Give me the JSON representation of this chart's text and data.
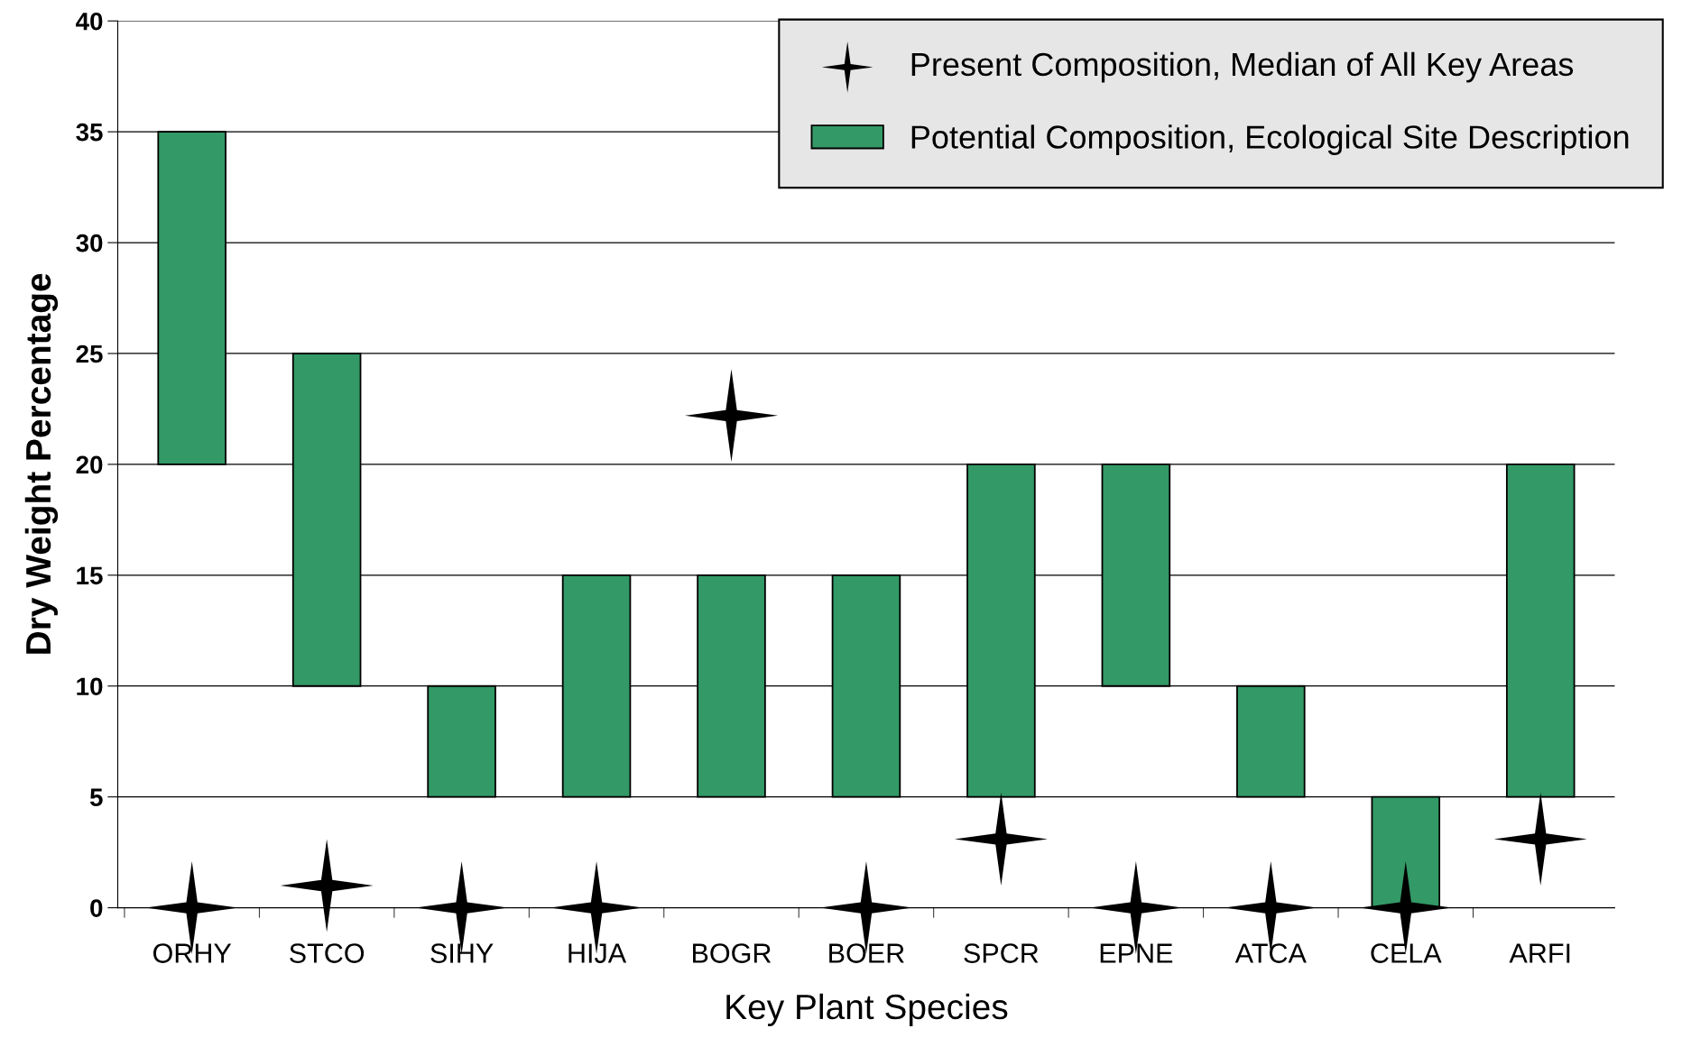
{
  "chart_data": {
    "type": "bar",
    "xlabel": "Key Plant Species",
    "ylabel": "Dry Weight Percentage",
    "categories": [
      "ORHY",
      "STCO",
      "SIHY",
      "HIJA",
      "BOGR",
      "BOER",
      "SPCR",
      "EPNE",
      "ATCA",
      "CELA",
      "ARFI"
    ],
    "series": [
      {
        "name": "Present Composition, Median of All Key Areas",
        "type": "scatter",
        "marker": "star",
        "color": "#000000",
        "values": [
          0,
          1,
          0,
          0,
          22.2,
          0,
          3.1,
          0,
          0,
          0,
          3.1
        ]
      },
      {
        "name": "Potential Composition, Ecological Site Description",
        "color": "#339966",
        "base": [
          20,
          10,
          5,
          5,
          5,
          5,
          5,
          10,
          5,
          0,
          5
        ],
        "values": [
          15,
          15,
          5,
          10,
          10,
          10,
          15,
          10,
          5,
          5,
          15
        ]
      }
    ],
    "ylim": [
      0,
      40
    ],
    "yticks": [
      0,
      5,
      10,
      15,
      20,
      25,
      30,
      35,
      40
    ],
    "grid": "y",
    "legend": "top right"
  }
}
